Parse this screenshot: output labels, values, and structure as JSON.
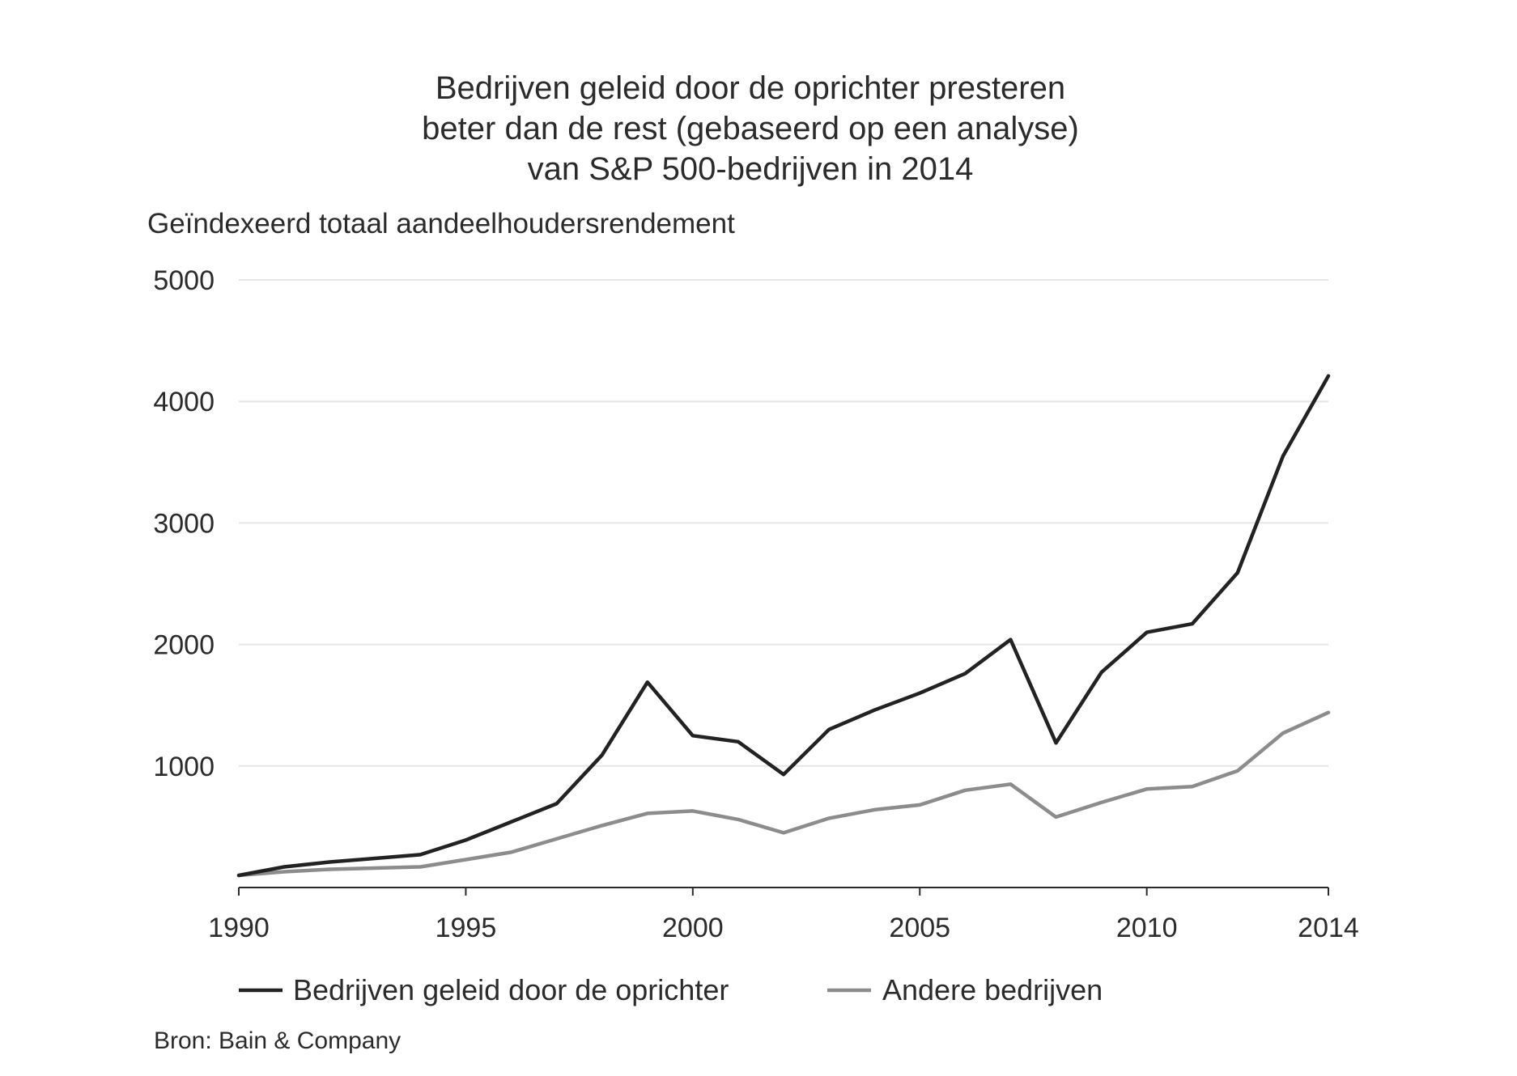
{
  "chart_data": {
    "type": "line",
    "title_lines": [
      "Bedrijven geleid door de oprichter presteren",
      "beter dan de rest (gebaseerd op een analyse)",
      "van S&P 500-bedrijven in 2014"
    ],
    "ylabel": "Geïndexeerd totaal aandeelhoudersrendement",
    "source": "Bron: Bain & Company",
    "ylim": [
      0,
      5000
    ],
    "xlim": [
      1990,
      2014
    ],
    "y_ticks": [
      1000,
      2000,
      3000,
      4000,
      5000
    ],
    "x_ticks": [
      1990,
      1995,
      2000,
      2005,
      2010,
      2014
    ],
    "grid": true,
    "legend_position": "bottom",
    "x": [
      1990,
      1991,
      1992,
      1993,
      1994,
      1995,
      1996,
      1997,
      1998,
      1999,
      2000,
      2001,
      2002,
      2003,
      2004,
      2005,
      2006,
      2007,
      2008,
      2009,
      2010,
      2011,
      2012,
      2013,
      2014
    ],
    "series": [
      {
        "name": "Bedrijven geleid door de oprichter",
        "color": "#222222",
        "values": [
          100,
          170,
          210,
          240,
          270,
          390,
          540,
          690,
          1090,
          1690,
          1250,
          1200,
          930,
          1300,
          1460,
          1600,
          1760,
          2040,
          1190,
          1770,
          2100,
          2170,
          2590,
          3550,
          4210
        ]
      },
      {
        "name": "Andere bedrijven",
        "color": "#8c8c8c",
        "values": [
          100,
          130,
          150,
          160,
          170,
          230,
          290,
          400,
          510,
          610,
          630,
          560,
          450,
          570,
          640,
          680,
          800,
          850,
          580,
          700,
          810,
          830,
          960,
          1270,
          1440
        ]
      }
    ]
  }
}
